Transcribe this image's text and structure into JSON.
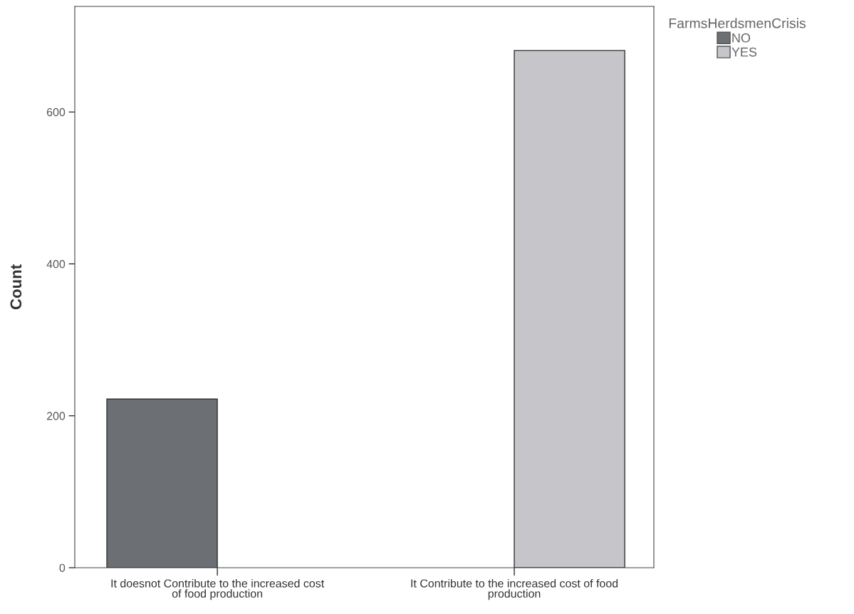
{
  "chart_data": {
    "type": "bar",
    "categories": [
      "It doesnot Contribute to the increased cost of food production",
      "It Contribute to the increased cost of food production"
    ],
    "series": [
      {
        "name": "NO",
        "color": "#6c6f74",
        "values": [
          222,
          null
        ]
      },
      {
        "name": "YES",
        "color": "#c6c6ca",
        "values": [
          null,
          681
        ]
      }
    ],
    "ylabel": "Count",
    "legend_title": "FarmsHerdsmenCrisis",
    "legend": "top right",
    "ylim": [
      0,
      739
    ],
    "yticks": [
      0,
      200,
      400,
      600
    ],
    "grid": false
  }
}
